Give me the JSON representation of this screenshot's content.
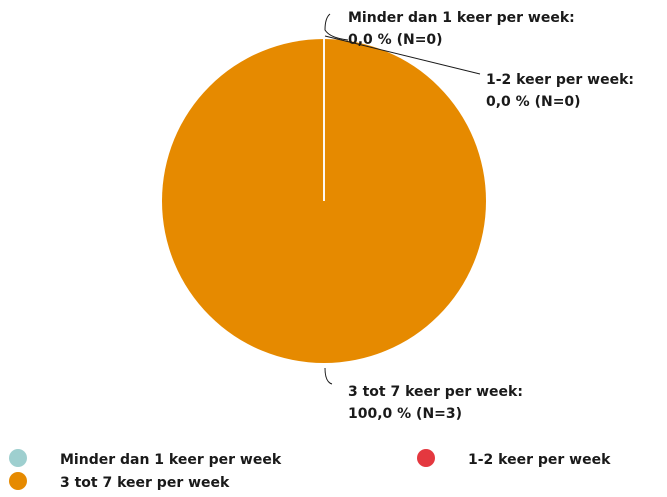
{
  "chart_data": {
    "type": "pie",
    "categories": [
      "Minder dan 1 keer per week",
      "1-2 keer per week",
      "3 tot 7 keer per week"
    ],
    "values": [
      0,
      0,
      100
    ],
    "value_labels": [
      "0,0 % (N=0)",
      "0,0 % (N=0)",
      "100,0 % (N=3)"
    ],
    "callout_titles": [
      "Minder dan 1 keer per week:",
      "1-2 keer per week:",
      "3 tot 7 keer per week:"
    ],
    "colors": [
      "#9ecfcf",
      "#e4383f",
      "#e68a00"
    ],
    "legend": "bottom"
  }
}
